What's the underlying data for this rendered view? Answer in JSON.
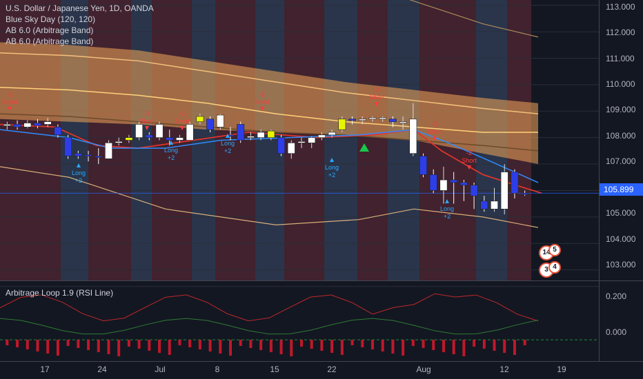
{
  "legend": {
    "title": "U.S. Dollar / Japanese Yen, 1D, OANDA",
    "ind1": "Blue Sky Day (120, 120)",
    "ind2": "AB 6.0 (Arbitrage Band)",
    "ind3": "AB 6.0 (Arbitrage Band)"
  },
  "rsi_legend": "Arbitrage Loop 1.9 (RSI Line)",
  "price_axis": [
    "113.000",
    "112.000",
    "111.000",
    "110.000",
    "109.000",
    "108.000",
    "107.000",
    "106.000",
    "105.000",
    "104.000",
    "103.000"
  ],
  "rsi_axis": [
    "0.200",
    "0.000"
  ],
  "last_price": "105.899",
  "time_axis": [
    "17",
    "24",
    "Jul",
    "8",
    "15",
    "22",
    "Aug",
    "12",
    "19"
  ],
  "signals": {
    "short": "Short",
    "long": "Long",
    "minus2": "-2",
    "plus2": "+2"
  },
  "badges": [
    "14",
    "5",
    "3",
    "4"
  ],
  "colors": {
    "bull": "#ffffff",
    "bear": "#2d3ee8",
    "lime": "#e8f500",
    "band": "#f2a55a",
    "short": "#ff3b3b",
    "long": "#2ba9ff",
    "last": "#2962ff"
  },
  "chart_data": {
    "type": "candlestick",
    "title": "U.S. Dollar / Japanese Yen, 1D, OANDA",
    "ylim": [
      102.6,
      113.2
    ],
    "last": 105.899,
    "candles": [
      {
        "o": 108.45,
        "c": 108.5,
        "h": 108.6,
        "l": 108.3
      },
      {
        "o": 108.5,
        "c": 108.4,
        "h": 108.65,
        "l": 108.3
      },
      {
        "o": 108.4,
        "c": 108.55,
        "h": 108.65,
        "l": 108.35
      },
      {
        "o": 108.55,
        "c": 108.45,
        "h": 108.7,
        "l": 108.35
      },
      {
        "o": 108.5,
        "c": 108.6,
        "h": 108.75,
        "l": 108.4
      },
      {
        "o": 108.4,
        "c": 108.1,
        "h": 108.5,
        "l": 108.0
      },
      {
        "o": 108.0,
        "c": 107.3,
        "h": 108.1,
        "l": 107.2
      },
      {
        "o": 107.4,
        "c": 107.3,
        "h": 107.5,
        "l": 107.2
      },
      {
        "o": 107.35,
        "c": 107.3,
        "h": 107.5,
        "l": 107.1
      },
      {
        "o": 107.3,
        "c": 107.25,
        "h": 107.6,
        "l": 107.0
      },
      {
        "o": 107.2,
        "c": 107.8,
        "h": 107.9,
        "l": 107.2
      },
      {
        "o": 107.8,
        "c": 107.85,
        "h": 108.0,
        "l": 107.7
      },
      {
        "o": 107.9,
        "c": 108.0,
        "h": 108.1,
        "l": 107.8
      },
      {
        "o": 108.0,
        "c": 108.5,
        "h": 108.6,
        "l": 107.9
      },
      {
        "o": 108.1,
        "c": 108.0,
        "h": 108.2,
        "l": 107.9
      },
      {
        "o": 108.0,
        "c": 108.5,
        "h": 108.6,
        "l": 107.9
      },
      {
        "o": 108.0,
        "c": 107.9,
        "h": 108.3,
        "l": 107.7
      },
      {
        "o": 107.9,
        "c": 108.0,
        "h": 108.1,
        "l": 107.8
      },
      {
        "o": 107.9,
        "c": 108.5,
        "h": 108.6,
        "l": 107.9
      },
      {
        "o": 108.6,
        "c": 108.8,
        "h": 108.9,
        "l": 108.5
      },
      {
        "o": 108.7,
        "c": 108.3,
        "h": 108.8,
        "l": 108.2
      },
      {
        "o": 108.4,
        "c": 108.85,
        "h": 108.9,
        "l": 108.3
      },
      {
        "o": 108.1,
        "c": 108.05,
        "h": 108.4,
        "l": 107.9
      },
      {
        "o": 108.5,
        "c": 107.9,
        "h": 108.6,
        "l": 107.8
      },
      {
        "o": 108.0,
        "c": 108.05,
        "h": 108.2,
        "l": 107.9
      },
      {
        "o": 108.0,
        "c": 108.2,
        "h": 108.3,
        "l": 107.9
      },
      {
        "o": 108.0,
        "c": 108.25,
        "h": 108.3,
        "l": 107.9
      },
      {
        "o": 108.0,
        "c": 107.4,
        "h": 108.1,
        "l": 107.3
      },
      {
        "o": 107.4,
        "c": 107.8,
        "h": 107.9,
        "l": 107.2
      },
      {
        "o": 107.8,
        "c": 107.85,
        "h": 108.0,
        "l": 107.6
      },
      {
        "o": 107.8,
        "c": 108.0,
        "h": 108.05,
        "l": 107.6
      },
      {
        "o": 108.0,
        "c": 108.1,
        "h": 108.2,
        "l": 107.9
      },
      {
        "o": 108.1,
        "c": 108.2,
        "h": 108.3,
        "l": 108.0
      },
      {
        "o": 108.3,
        "c": 108.7,
        "h": 108.8,
        "l": 108.2
      },
      {
        "o": 108.7,
        "c": 108.65,
        "h": 108.8,
        "l": 108.5
      },
      {
        "o": 108.65,
        "c": 108.7,
        "h": 108.8,
        "l": 108.5
      },
      {
        "o": 108.7,
        "c": 108.75,
        "h": 108.8,
        "l": 108.6
      },
      {
        "o": 108.7,
        "c": 108.75,
        "h": 108.8,
        "l": 108.6
      },
      {
        "o": 108.7,
        "c": 108.6,
        "h": 108.8,
        "l": 108.4
      },
      {
        "o": 108.6,
        "c": 108.6,
        "h": 108.8,
        "l": 108.3
      },
      {
        "o": 107.4,
        "c": 108.7,
        "h": 109.3,
        "l": 107.3
      },
      {
        "o": 107.3,
        "c": 106.6,
        "h": 107.4,
        "l": 106.5
      },
      {
        "o": 106.6,
        "c": 106.0,
        "h": 106.8,
        "l": 105.9
      },
      {
        "o": 106.0,
        "c": 106.4,
        "h": 106.9,
        "l": 105.5
      },
      {
        "o": 106.4,
        "c": 106.3,
        "h": 106.7,
        "l": 105.5
      },
      {
        "o": 106.3,
        "c": 106.2,
        "h": 106.4,
        "l": 105.6
      },
      {
        "o": 106.2,
        "c": 105.8,
        "h": 106.3,
        "l": 105.3
      },
      {
        "o": 105.6,
        "c": 105.3,
        "h": 105.8,
        "l": 105.2
      },
      {
        "o": 105.3,
        "c": 105.6,
        "h": 106.1,
        "l": 105.2
      },
      {
        "o": 105.3,
        "c": 106.7,
        "h": 107.0,
        "l": 105.1
      },
      {
        "o": 106.7,
        "c": 105.9,
        "h": 106.8,
        "l": 105.7
      },
      {
        "o": 105.9,
        "c": 105.85,
        "h": 106.0,
        "l": 105.8
      }
    ],
    "rsi_ylim": [
      -0.08,
      0.22
    ]
  }
}
